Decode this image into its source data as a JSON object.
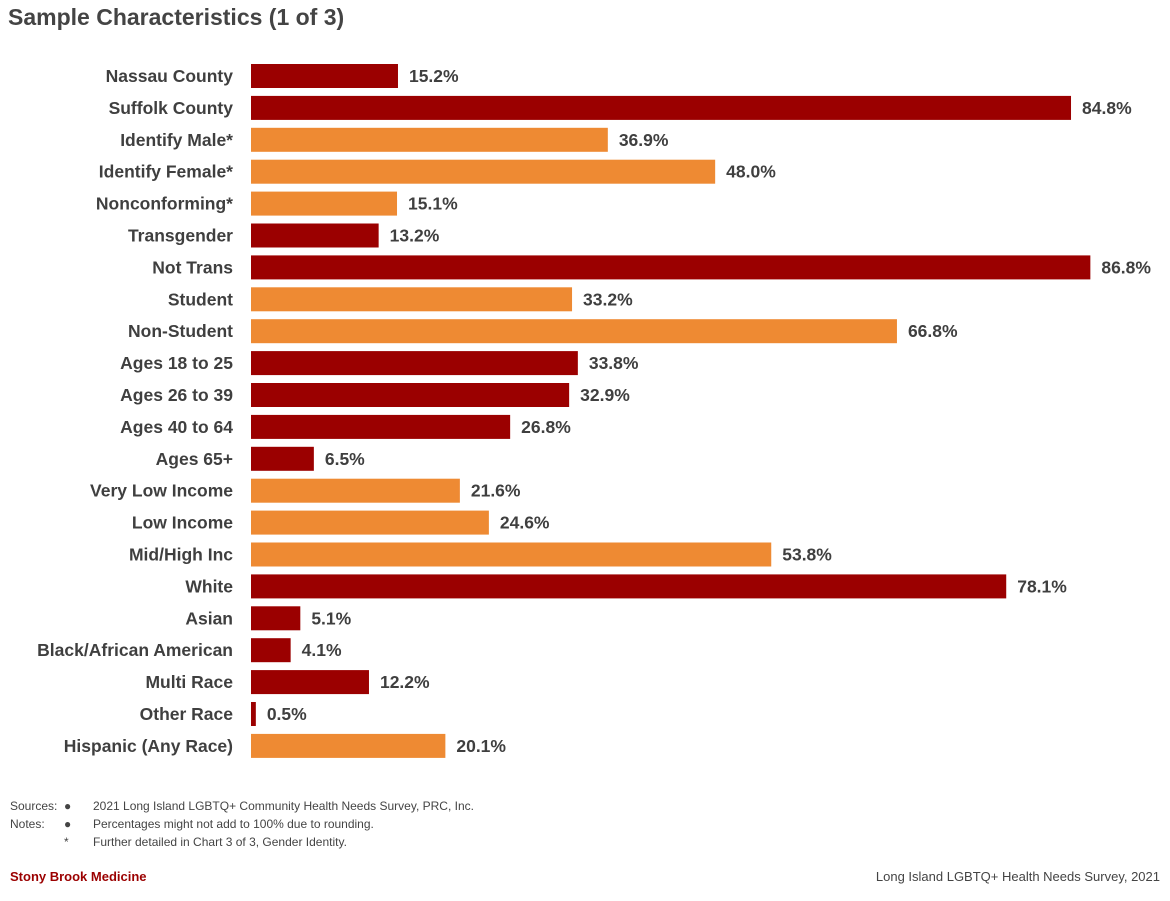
{
  "title": "Sample Characteristics (1 of 3)",
  "colors": {
    "dark_red": "#9b0000",
    "orange": "#ee8a33"
  },
  "chart_data": {
    "type": "bar",
    "orientation": "horizontal",
    "title": "Sample Characteristics (1 of 3)",
    "xlim": [
      0,
      100
    ],
    "grid": false,
    "categories": [
      "Nassau County",
      "Suffolk County",
      "Identify Male*",
      "Identify Female*",
      "Nonconforming*",
      "Transgender",
      "Not Trans",
      "Student",
      "Non-Student",
      "Ages 18 to 25",
      "Ages 26 to 39",
      "Ages 40 to 64",
      "Ages 65+",
      "Very Low Income",
      "Low Income",
      "Mid/High Inc",
      "White",
      "Asian",
      "Black/African American",
      "Multi Race",
      "Other Race",
      "Hispanic (Any Race)"
    ],
    "values": [
      15.2,
      84.8,
      36.9,
      48.0,
      15.1,
      13.2,
      86.8,
      33.2,
      66.8,
      33.8,
      32.9,
      26.8,
      6.5,
      21.6,
      24.6,
      53.8,
      78.1,
      5.1,
      4.1,
      12.2,
      0.5,
      20.1
    ],
    "value_labels": [
      "15.2%",
      "84.8%",
      "36.9%",
      "48.0%",
      "15.1%",
      "13.2%",
      "86.8%",
      "33.2%",
      "66.8%",
      "33.8%",
      "32.9%",
      "26.8%",
      "6.5%",
      "21.6%",
      "24.6%",
      "53.8%",
      "78.1%",
      "5.1%",
      "4.1%",
      "12.2%",
      "0.5%",
      "20.1%"
    ],
    "bar_colors": [
      "dark_red",
      "dark_red",
      "orange",
      "orange",
      "orange",
      "dark_red",
      "dark_red",
      "orange",
      "orange",
      "dark_red",
      "dark_red",
      "dark_red",
      "dark_red",
      "orange",
      "orange",
      "orange",
      "dark_red",
      "dark_red",
      "dark_red",
      "dark_red",
      "dark_red",
      "orange"
    ]
  },
  "footer": {
    "sources_label": "Sources:",
    "notes_label": "Notes:",
    "bullet": "●",
    "asterisk": "*",
    "source_text": "2021 Long Island LGBTQ+ Community Health Needs Survey, PRC, Inc.",
    "note_1": "Percentages might not add to 100% due to rounding.",
    "note_2": "Further detailed in Chart 3 of 3, Gender Identity.",
    "brand": "Stony Brook Medicine",
    "survey": "Long Island LGBTQ+ Health Needs Survey, 2021"
  }
}
